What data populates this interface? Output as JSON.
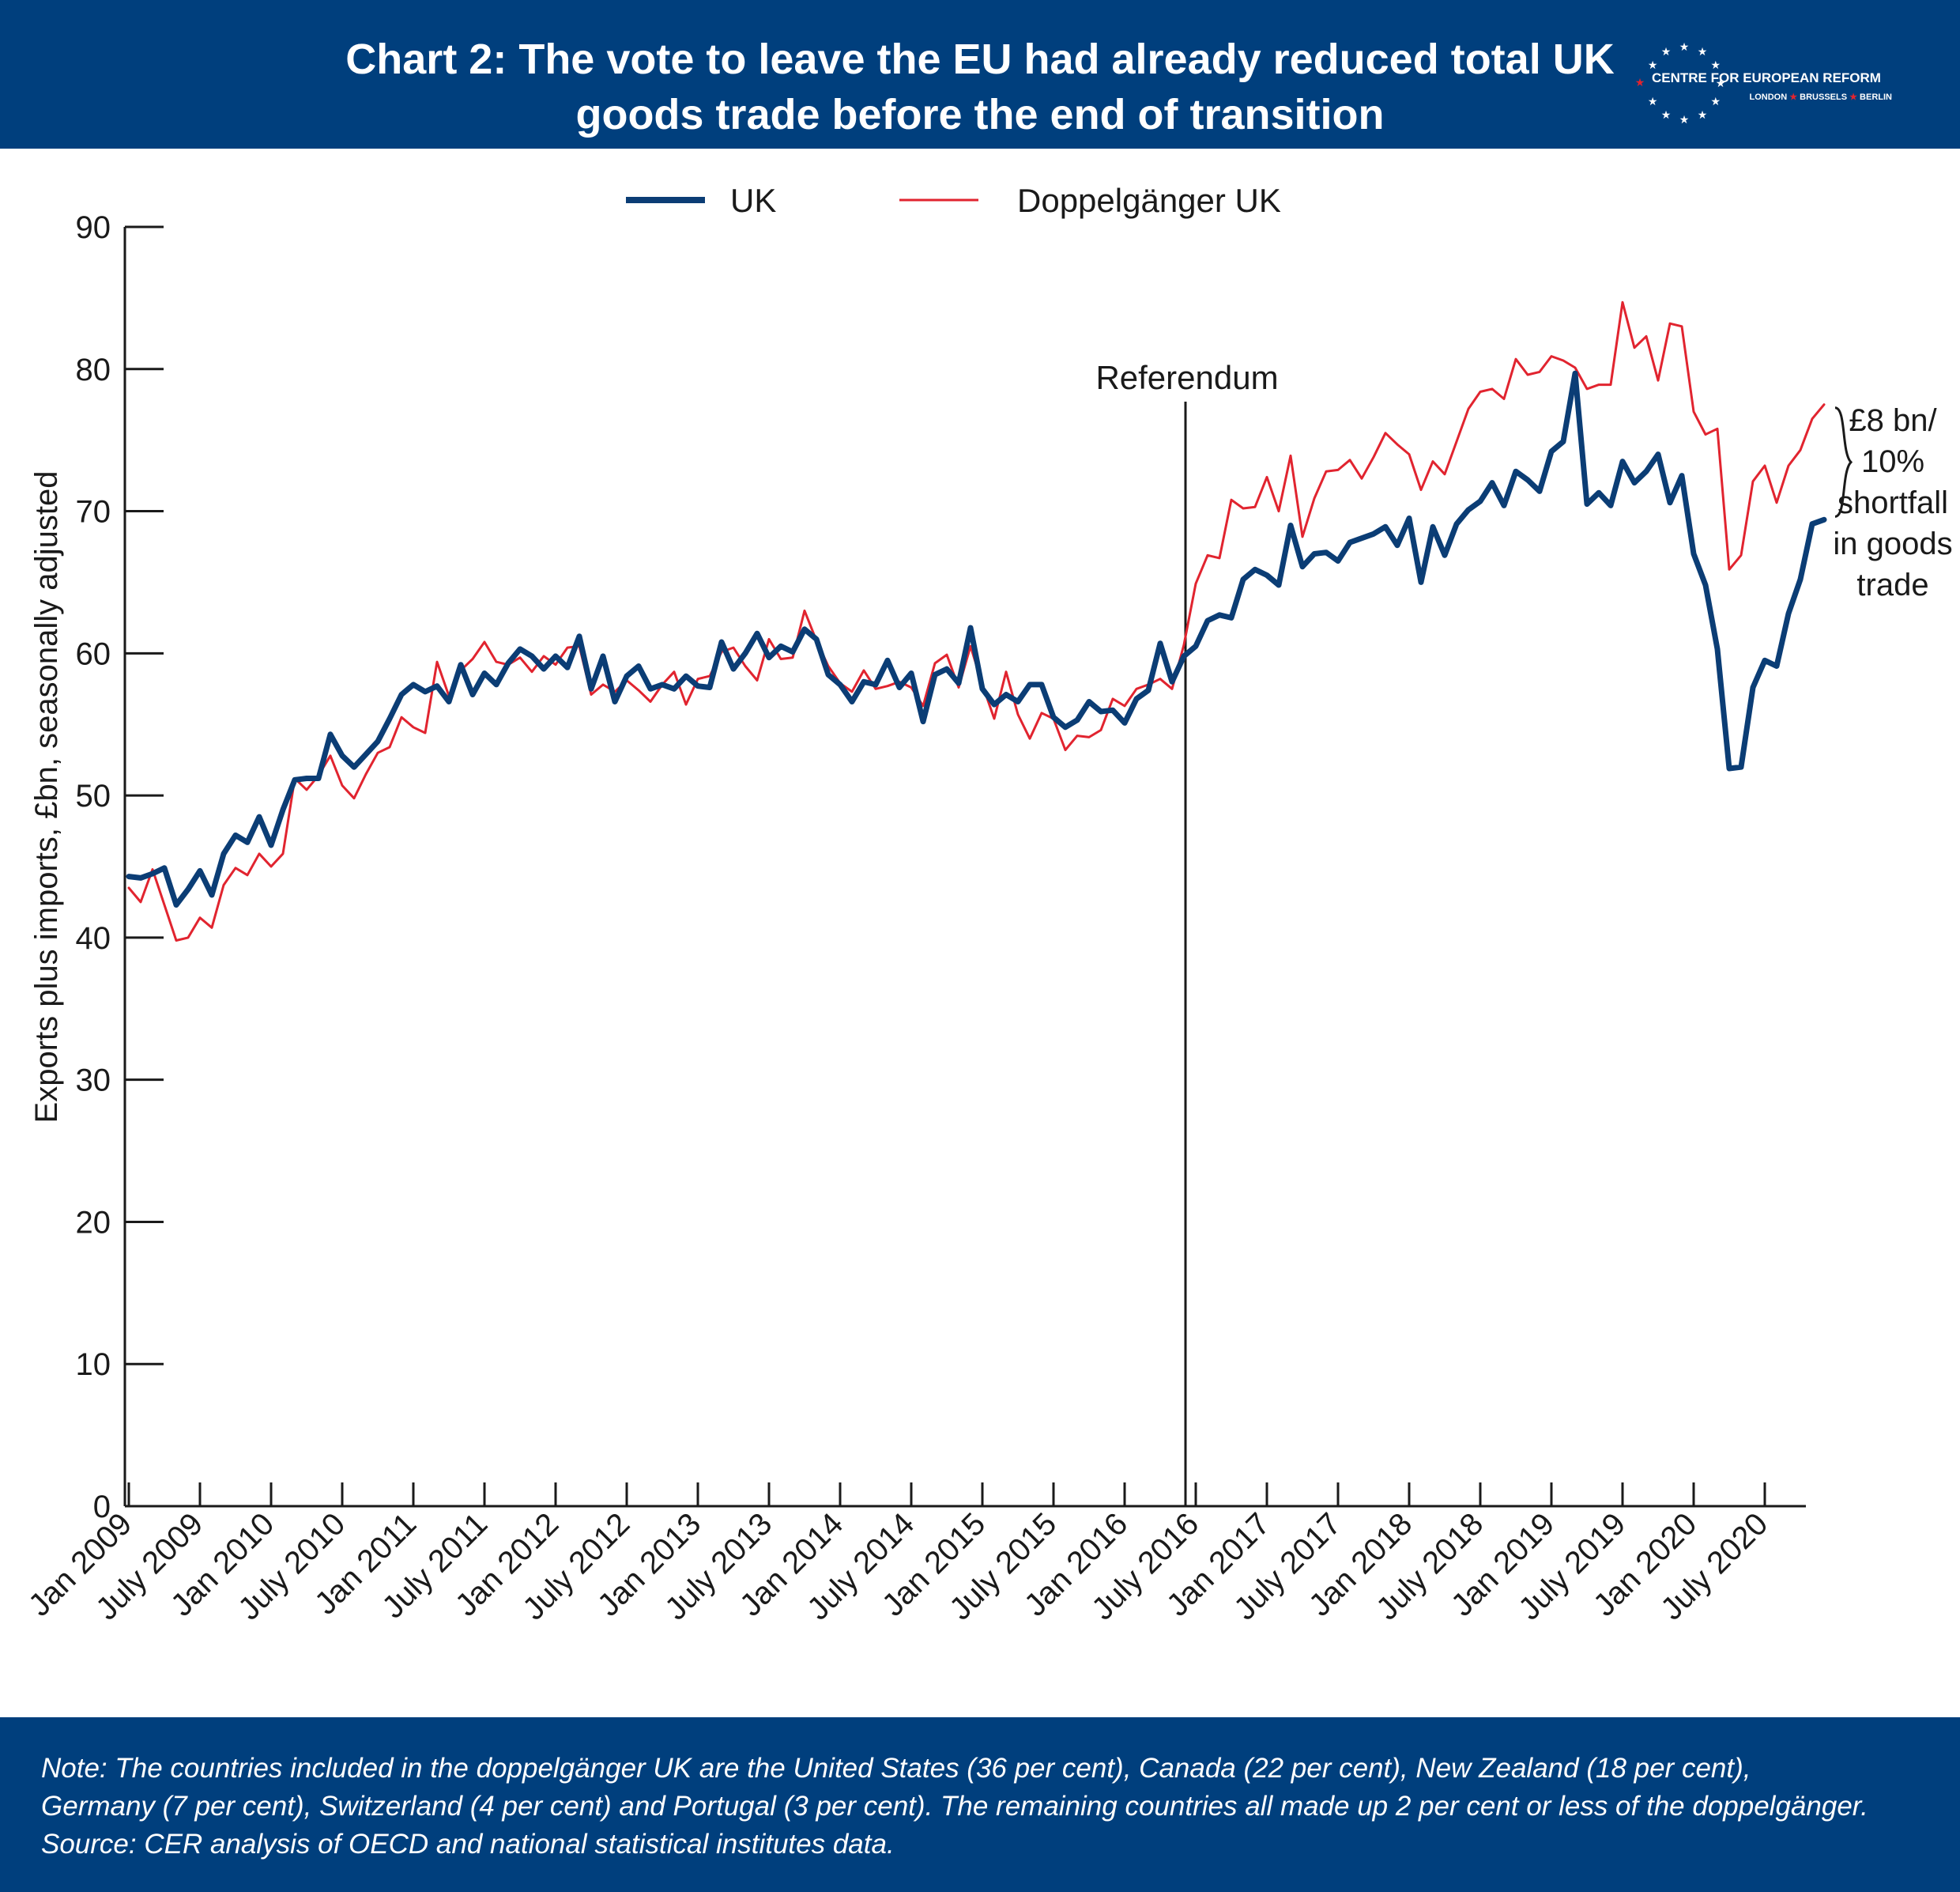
{
  "header": {
    "title_line1": "Chart 2: The vote to leave the EU had already reduced total UK",
    "title_line2": "goods trade before the end of transition",
    "background": "#003f7d",
    "logo": {
      "name": "CENTRE FOR EUROPEAN REFORM",
      "cities": [
        "LONDON",
        "BRUSSELS",
        "BERLIN"
      ],
      "icon": "eu-stars-circle"
    }
  },
  "footer": {
    "note_line1": "Note: The countries included in the doppelgänger UK are the United States (36 per cent), Canada (22 per cent), New Zealand (18 per cent),",
    "note_line2": "Germany (7 per cent), Switzerland (4 per cent) and Portugal (3 per cent). The remaining countries all made up 2 per cent or less of the doppelgänger.",
    "note_line3": "Source: CER analysis of OECD and national statistical institutes data."
  },
  "chart_data": {
    "type": "line",
    "title": "Chart 2: The vote to leave the EU had already reduced total UK goods trade before the end of transition",
    "ylabel": "Exports plus imports, £bn, seasonally adjusted",
    "xlabel": "",
    "ylim": [
      0,
      90
    ],
    "yticks": [
      0,
      10,
      20,
      30,
      40,
      50,
      60,
      70,
      80,
      90
    ],
    "x_start": "Jan 2009",
    "x_end": "Dec 2020",
    "xtick_labels": [
      "Jan 2009",
      "July 2009",
      "Jan 2010",
      "July 2010",
      "Jan 2011",
      "July 2011",
      "Jan 2012",
      "July 2012",
      "Jan 2013",
      "July 2013",
      "Jan 2014",
      "July 2014",
      "Jan 2015",
      "July 2015",
      "Jan 2016",
      "July 2016",
      "Jan 2017",
      "July 2017",
      "Jan 2018",
      "July 2018",
      "Jan 2019",
      "July 2019",
      "Jan 2020",
      "July 2020"
    ],
    "grid": false,
    "legend_position": "top-center",
    "series": [
      {
        "name": "UK",
        "color": "#0b3d75",
        "values": [
          44.3,
          44.2,
          44.5,
          44.9,
          42.3,
          43.4,
          44.7,
          43.0,
          45.9,
          47.2,
          46.7,
          48.5,
          46.5,
          49.0,
          51.1,
          51.2,
          51.2,
          54.3,
          52.8,
          52.0,
          52.9,
          53.8,
          55.4,
          57.1,
          57.8,
          57.3,
          57.7,
          56.6,
          59.2,
          57.1,
          58.6,
          57.8,
          59.3,
          60.3,
          59.8,
          58.9,
          59.8,
          59.0,
          61.2,
          57.5,
          59.8,
          56.6,
          58.4,
          59.1,
          57.5,
          57.8,
          57.5,
          58.4,
          57.7,
          57.6,
          60.8,
          58.9,
          60.0,
          61.4,
          59.7,
          60.5,
          60.1,
          61.7,
          61.0,
          58.5,
          57.8,
          56.6,
          58.0,
          57.8,
          59.5,
          57.6,
          58.6,
          55.2,
          58.5,
          58.9,
          57.9,
          61.8,
          57.5,
          56.4,
          57.1,
          56.6,
          57.8,
          57.8,
          55.5,
          54.8,
          55.3,
          56.6,
          55.9,
          56.0,
          55.1,
          56.8,
          57.4,
          60.7,
          58.0,
          59.8,
          60.5,
          62.3,
          62.7,
          62.5,
          65.2,
          65.9,
          65.5,
          64.8,
          69.0,
          66.1,
          67.0,
          67.1,
          66.5,
          67.8,
          68.1,
          68.4,
          68.9,
          67.6,
          69.5,
          65.0,
          68.9,
          66.9,
          69.1,
          70.1,
          70.7,
          72.0,
          70.4,
          72.8,
          72.2,
          71.4,
          74.2,
          74.9,
          79.7,
          70.5,
          71.3,
          70.4,
          73.5,
          72.0,
          72.8,
          74.0,
          70.6,
          72.5,
          67.0,
          64.8,
          60.3,
          51.9,
          52.0,
          57.6,
          59.5,
          59.1,
          62.8,
          65.2,
          69.1,
          69.4
        ]
      },
      {
        "name": "Doppelgänger UK",
        "color": "#e1242f",
        "values": [
          43.5,
          42.5,
          44.8,
          42.3,
          39.8,
          40.0,
          41.4,
          40.7,
          43.7,
          44.9,
          44.4,
          45.9,
          45.0,
          45.9,
          51.2,
          50.4,
          51.4,
          52.8,
          50.7,
          49.8,
          51.5,
          53.0,
          53.4,
          55.5,
          54.8,
          54.4,
          59.4,
          57.0,
          58.8,
          59.6,
          60.8,
          59.4,
          59.2,
          59.7,
          58.7,
          59.8,
          59.2,
          60.4,
          60.5,
          57.1,
          57.8,
          57.3,
          58.1,
          57.4,
          56.6,
          57.8,
          58.7,
          56.4,
          58.2,
          58.4,
          60.1,
          60.4,
          59.1,
          58.1,
          61.0,
          59.6,
          59.7,
          63.0,
          60.9,
          59.1,
          57.9,
          57.3,
          58.8,
          57.5,
          57.7,
          58.0,
          57.6,
          56.3,
          59.3,
          59.9,
          57.6,
          60.5,
          57.8,
          55.4,
          58.7,
          55.7,
          54.0,
          55.8,
          55.4,
          53.2,
          54.2,
          54.1,
          54.6,
          56.8,
          56.3,
          57.5,
          57.8,
          58.2,
          57.5,
          60.6,
          64.9,
          66.9,
          66.7,
          70.8,
          70.2,
          70.3,
          72.4,
          70.0,
          73.9,
          68.2,
          70.9,
          72.8,
          72.9,
          73.6,
          72.3,
          73.8,
          75.5,
          74.7,
          74.0,
          71.5,
          73.5,
          72.6,
          74.9,
          77.2,
          78.4,
          78.6,
          77.9,
          80.7,
          79.6,
          79.8,
          80.9,
          80.6,
          80.1,
          78.6,
          78.9,
          78.9,
          84.7,
          81.5,
          82.3,
          79.2,
          83.2,
          83.0,
          77.0,
          75.4,
          75.8,
          65.9,
          66.9,
          72.1,
          73.2,
          70.6,
          73.2,
          74.3,
          76.5,
          77.5
        ]
      }
    ],
    "annotations": [
      {
        "text": "Referendum",
        "x": "Jun 2016"
      },
      {
        "text_lines": [
          "£8 bn/",
          "10%",
          "shortfall",
          "in goods",
          "trade"
        ],
        "x": "Dec 2020",
        "y_range": [
          69.4,
          77.5
        ]
      }
    ]
  }
}
